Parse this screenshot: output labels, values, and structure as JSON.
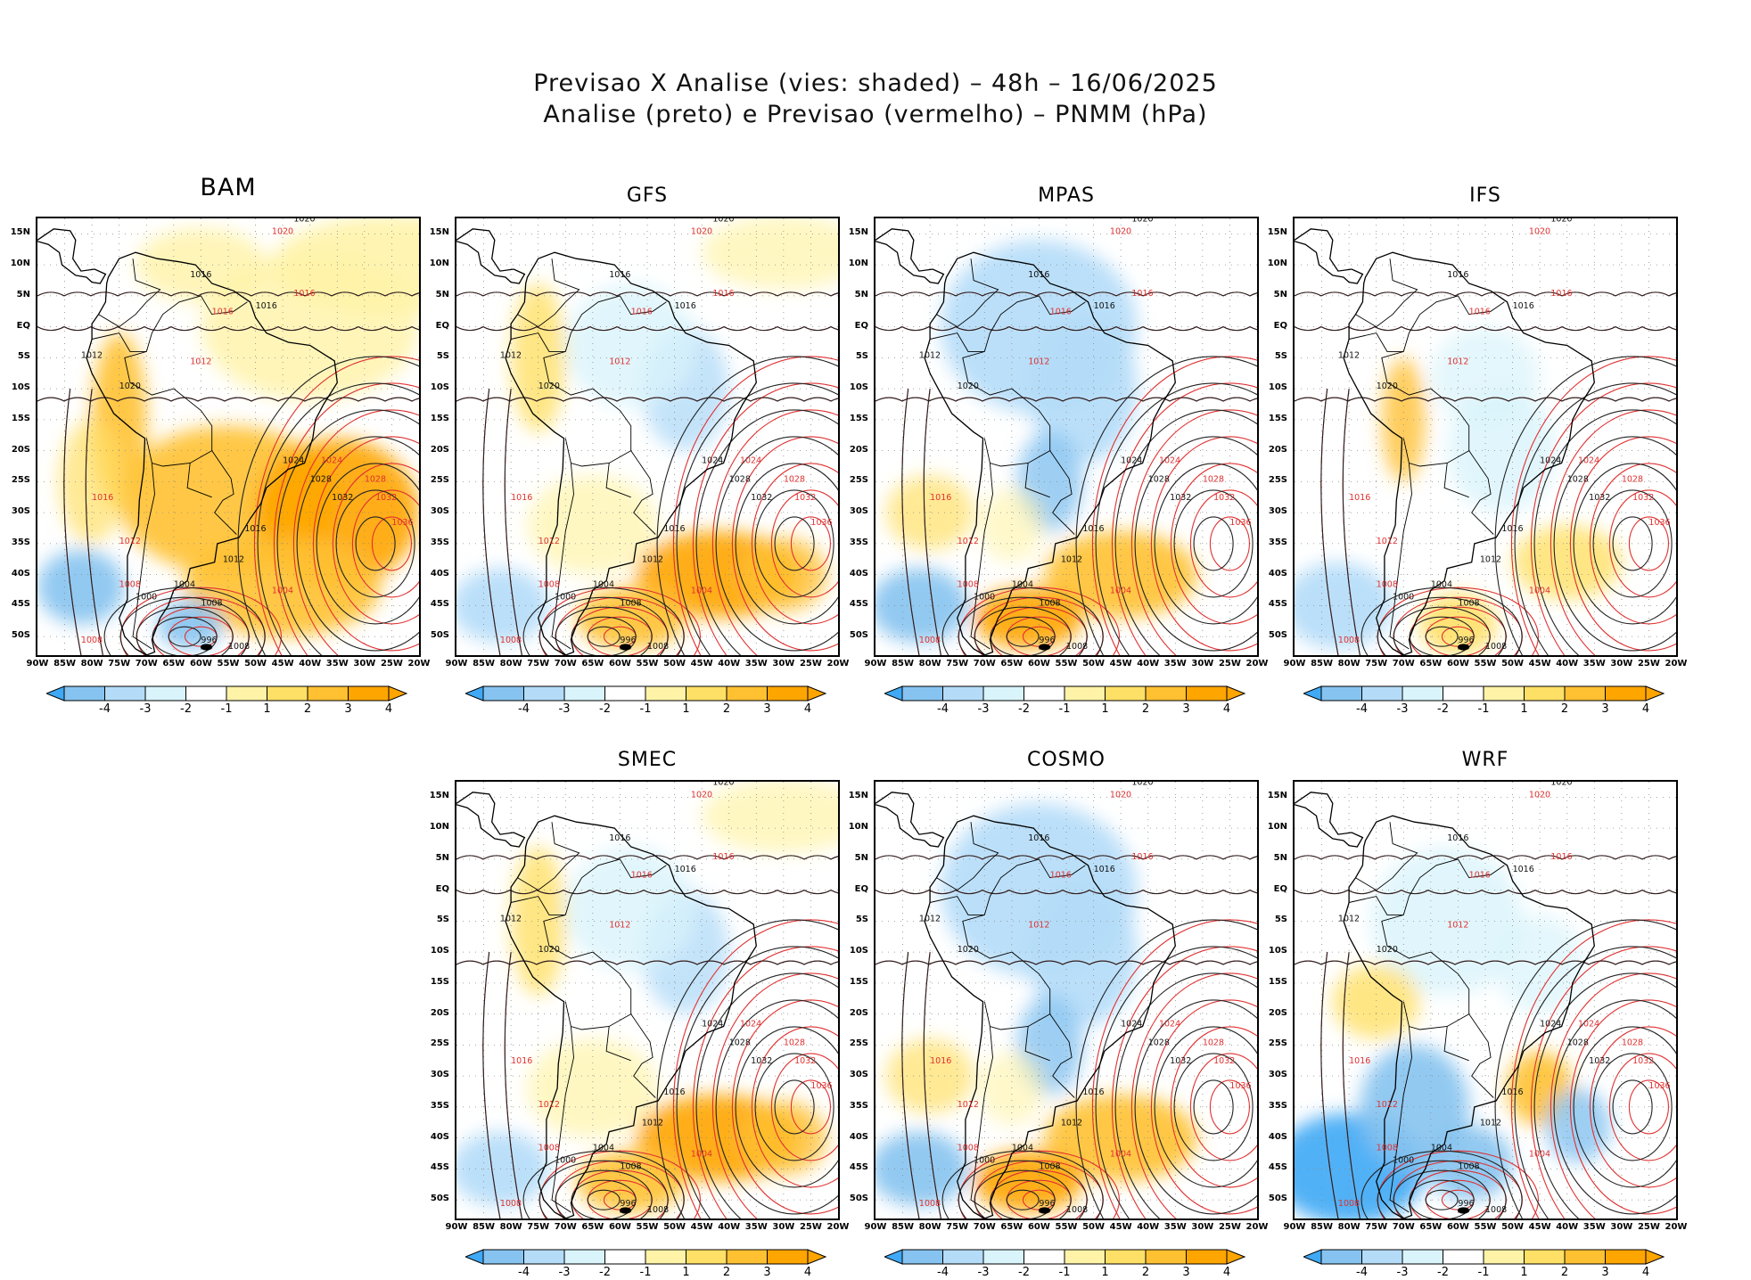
{
  "title_line1": "Previsao X Analise (vies: shaded) – 48h – 16/06/2025",
  "title_line2": "Analise (preto) e Previsao (vermelho) – PNMM (hPa)",
  "lat_labels": [
    "15N",
    "10N",
    "5N",
    "EQ",
    "5S",
    "10S",
    "15S",
    "20S",
    "25S",
    "30S",
    "35S",
    "40S",
    "45S",
    "50S"
  ],
  "lon_labels": [
    "90W",
    "85W",
    "80W",
    "75W",
    "70W",
    "65W",
    "60W",
    "55W",
    "50W",
    "45W",
    "40W",
    "35W",
    "30W",
    "25W",
    "20W"
  ],
  "colorbar": {
    "labels": [
      "-4",
      "-3",
      "-2",
      "-1",
      "1",
      "2",
      "3",
      "4"
    ],
    "colors": [
      "#3fa9f5",
      "#86c3f0",
      "#b4dcf8",
      "#d9f4fb",
      "#ffffff",
      "#fff3a8",
      "#ffe066",
      "#ffc132",
      "#ffa500"
    ]
  },
  "panels": [
    {
      "name": "BAM",
      "big": true,
      "bias": "warm_strong"
    },
    {
      "name": "GFS",
      "big": false,
      "bias": "mixed"
    },
    {
      "name": "MPAS",
      "big": false,
      "bias": "cool"
    },
    {
      "name": "IFS",
      "big": false,
      "bias": "neutral"
    },
    {
      "name": "SMEC",
      "big": false,
      "bias": "mixed"
    },
    {
      "name": "COSMO",
      "big": false,
      "bias": "cool"
    },
    {
      "name": "WRF",
      "big": false,
      "bias": "cool_strong"
    }
  ],
  "contour_labels": {
    "black": [
      "1020",
      "1016",
      "1016",
      "1016",
      "1012",
      "1020",
      "1024",
      "1028",
      "1032",
      "1016",
      "1012",
      "1008",
      "1004",
      "1000",
      "996",
      "1008"
    ],
    "red": [
      "1020",
      "1016",
      "1016",
      "1012",
      "1016",
      "1024",
      "1028",
      "1032",
      "1012",
      "1008",
      "1004",
      "1008",
      "1036"
    ]
  }
}
